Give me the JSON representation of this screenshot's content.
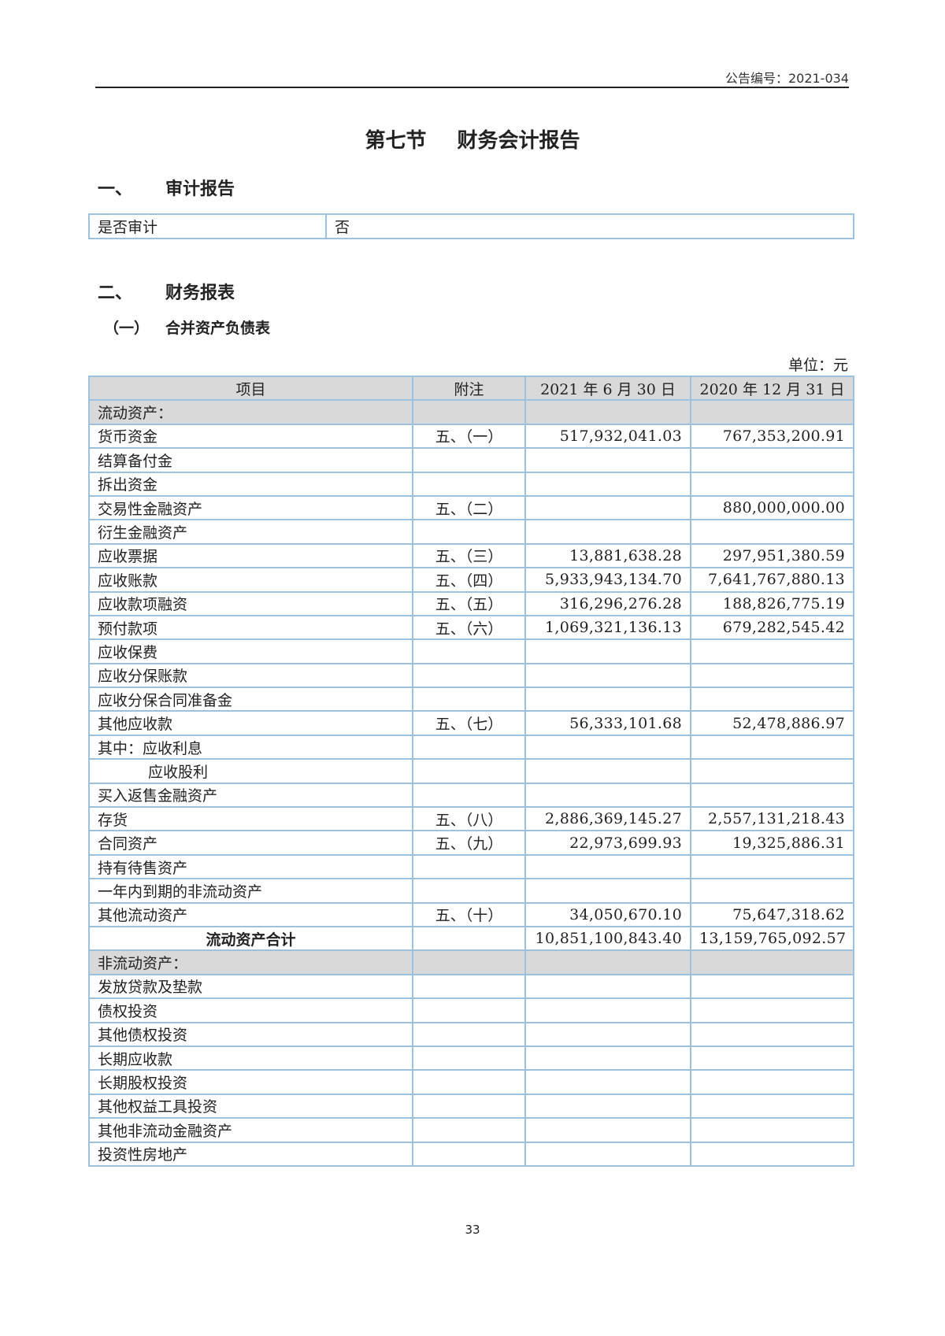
{
  "header": {
    "announcement_no": "公告编号：2021-034"
  },
  "title": "第七节 财务会计报告",
  "section1": {
    "num": "一、",
    "title": "审计报告"
  },
  "audit": {
    "label": "是否审计",
    "value": "否"
  },
  "section2": {
    "num": "二、",
    "title": "财务报表"
  },
  "subsection1": {
    "num": "（一）",
    "title": "合并资产负债表"
  },
  "unit": "单位：元",
  "table": {
    "headers": [
      "项目",
      "附注",
      "2021 年 6 月 30 日",
      "2020 年 12 月 31 日"
    ],
    "rows": [
      {
        "item": "流动资产：",
        "note": "",
        "current": "",
        "prior": "",
        "type": "section"
      },
      {
        "item": "货币资金",
        "note": "五、（一）",
        "current": "517,932,041.03",
        "prior": "767,353,200.91"
      },
      {
        "item": "结算备付金",
        "note": "",
        "current": "",
        "prior": ""
      },
      {
        "item": "拆出资金",
        "note": "",
        "current": "",
        "prior": ""
      },
      {
        "item": "交易性金融资产",
        "note": "五、（二）",
        "current": "",
        "prior": "880,000,000.00"
      },
      {
        "item": "衍生金融资产",
        "note": "",
        "current": "",
        "prior": ""
      },
      {
        "item": "应收票据",
        "note": "五、（三）",
        "current": "13,881,638.28",
        "prior": "297,951,380.59"
      },
      {
        "item": "应收账款",
        "note": "五、（四）",
        "current": "5,933,943,134.70",
        "prior": "7,641,767,880.13"
      },
      {
        "item": "应收款项融资",
        "note": "五、（五）",
        "current": "316,296,276.28",
        "prior": "188,826,775.19"
      },
      {
        "item": "预付款项",
        "note": "五、（六）",
        "current": "1,069,321,136.13",
        "prior": "679,282,545.42"
      },
      {
        "item": "应收保费",
        "note": "",
        "current": "",
        "prior": ""
      },
      {
        "item": "应收分保账款",
        "note": "",
        "current": "",
        "prior": ""
      },
      {
        "item": "应收分保合同准备金",
        "note": "",
        "current": "",
        "prior": ""
      },
      {
        "item": "其他应收款",
        "note": "五、（七）",
        "current": "56,333,101.68",
        "prior": "52,478,886.97"
      },
      {
        "item": "其中：应收利息",
        "note": "",
        "current": "",
        "prior": ""
      },
      {
        "item": "应收股利",
        "note": "",
        "current": "",
        "prior": "",
        "type": "indent"
      },
      {
        "item": "买入返售金融资产",
        "note": "",
        "current": "",
        "prior": ""
      },
      {
        "item": "存货",
        "note": "五、（八）",
        "current": "2,886,369,145.27",
        "prior": "2,557,131,218.43"
      },
      {
        "item": "合同资产",
        "note": "五、（九）",
        "current": "22,973,699.93",
        "prior": "19,325,886.31"
      },
      {
        "item": "持有待售资产",
        "note": "",
        "current": "",
        "prior": ""
      },
      {
        "item": "一年内到期的非流动资产",
        "note": "",
        "current": "",
        "prior": ""
      },
      {
        "item": "其他流动资产",
        "note": "五、（十）",
        "current": "34,050,670.10",
        "prior": "75,647,318.62"
      },
      {
        "item": "流动资产合计",
        "note": "",
        "current": "10,851,100,843.40",
        "prior": "13,159,765,092.57",
        "type": "total"
      },
      {
        "item": "非流动资产：",
        "note": "",
        "current": "",
        "prior": "",
        "type": "section"
      },
      {
        "item": "发放贷款及垫款",
        "note": "",
        "current": "",
        "prior": ""
      },
      {
        "item": "债权投资",
        "note": "",
        "current": "",
        "prior": ""
      },
      {
        "item": "其他债权投资",
        "note": "",
        "current": "",
        "prior": ""
      },
      {
        "item": "长期应收款",
        "note": "",
        "current": "",
        "prior": ""
      },
      {
        "item": "长期股权投资",
        "note": "",
        "current": "",
        "prior": ""
      },
      {
        "item": "其他权益工具投资",
        "note": "",
        "current": "",
        "prior": ""
      },
      {
        "item": "其他非流动金融资产",
        "note": "",
        "current": "",
        "prior": ""
      },
      {
        "item": "投资性房地产",
        "note": "",
        "current": "",
        "prior": ""
      }
    ]
  },
  "page_number": "33"
}
